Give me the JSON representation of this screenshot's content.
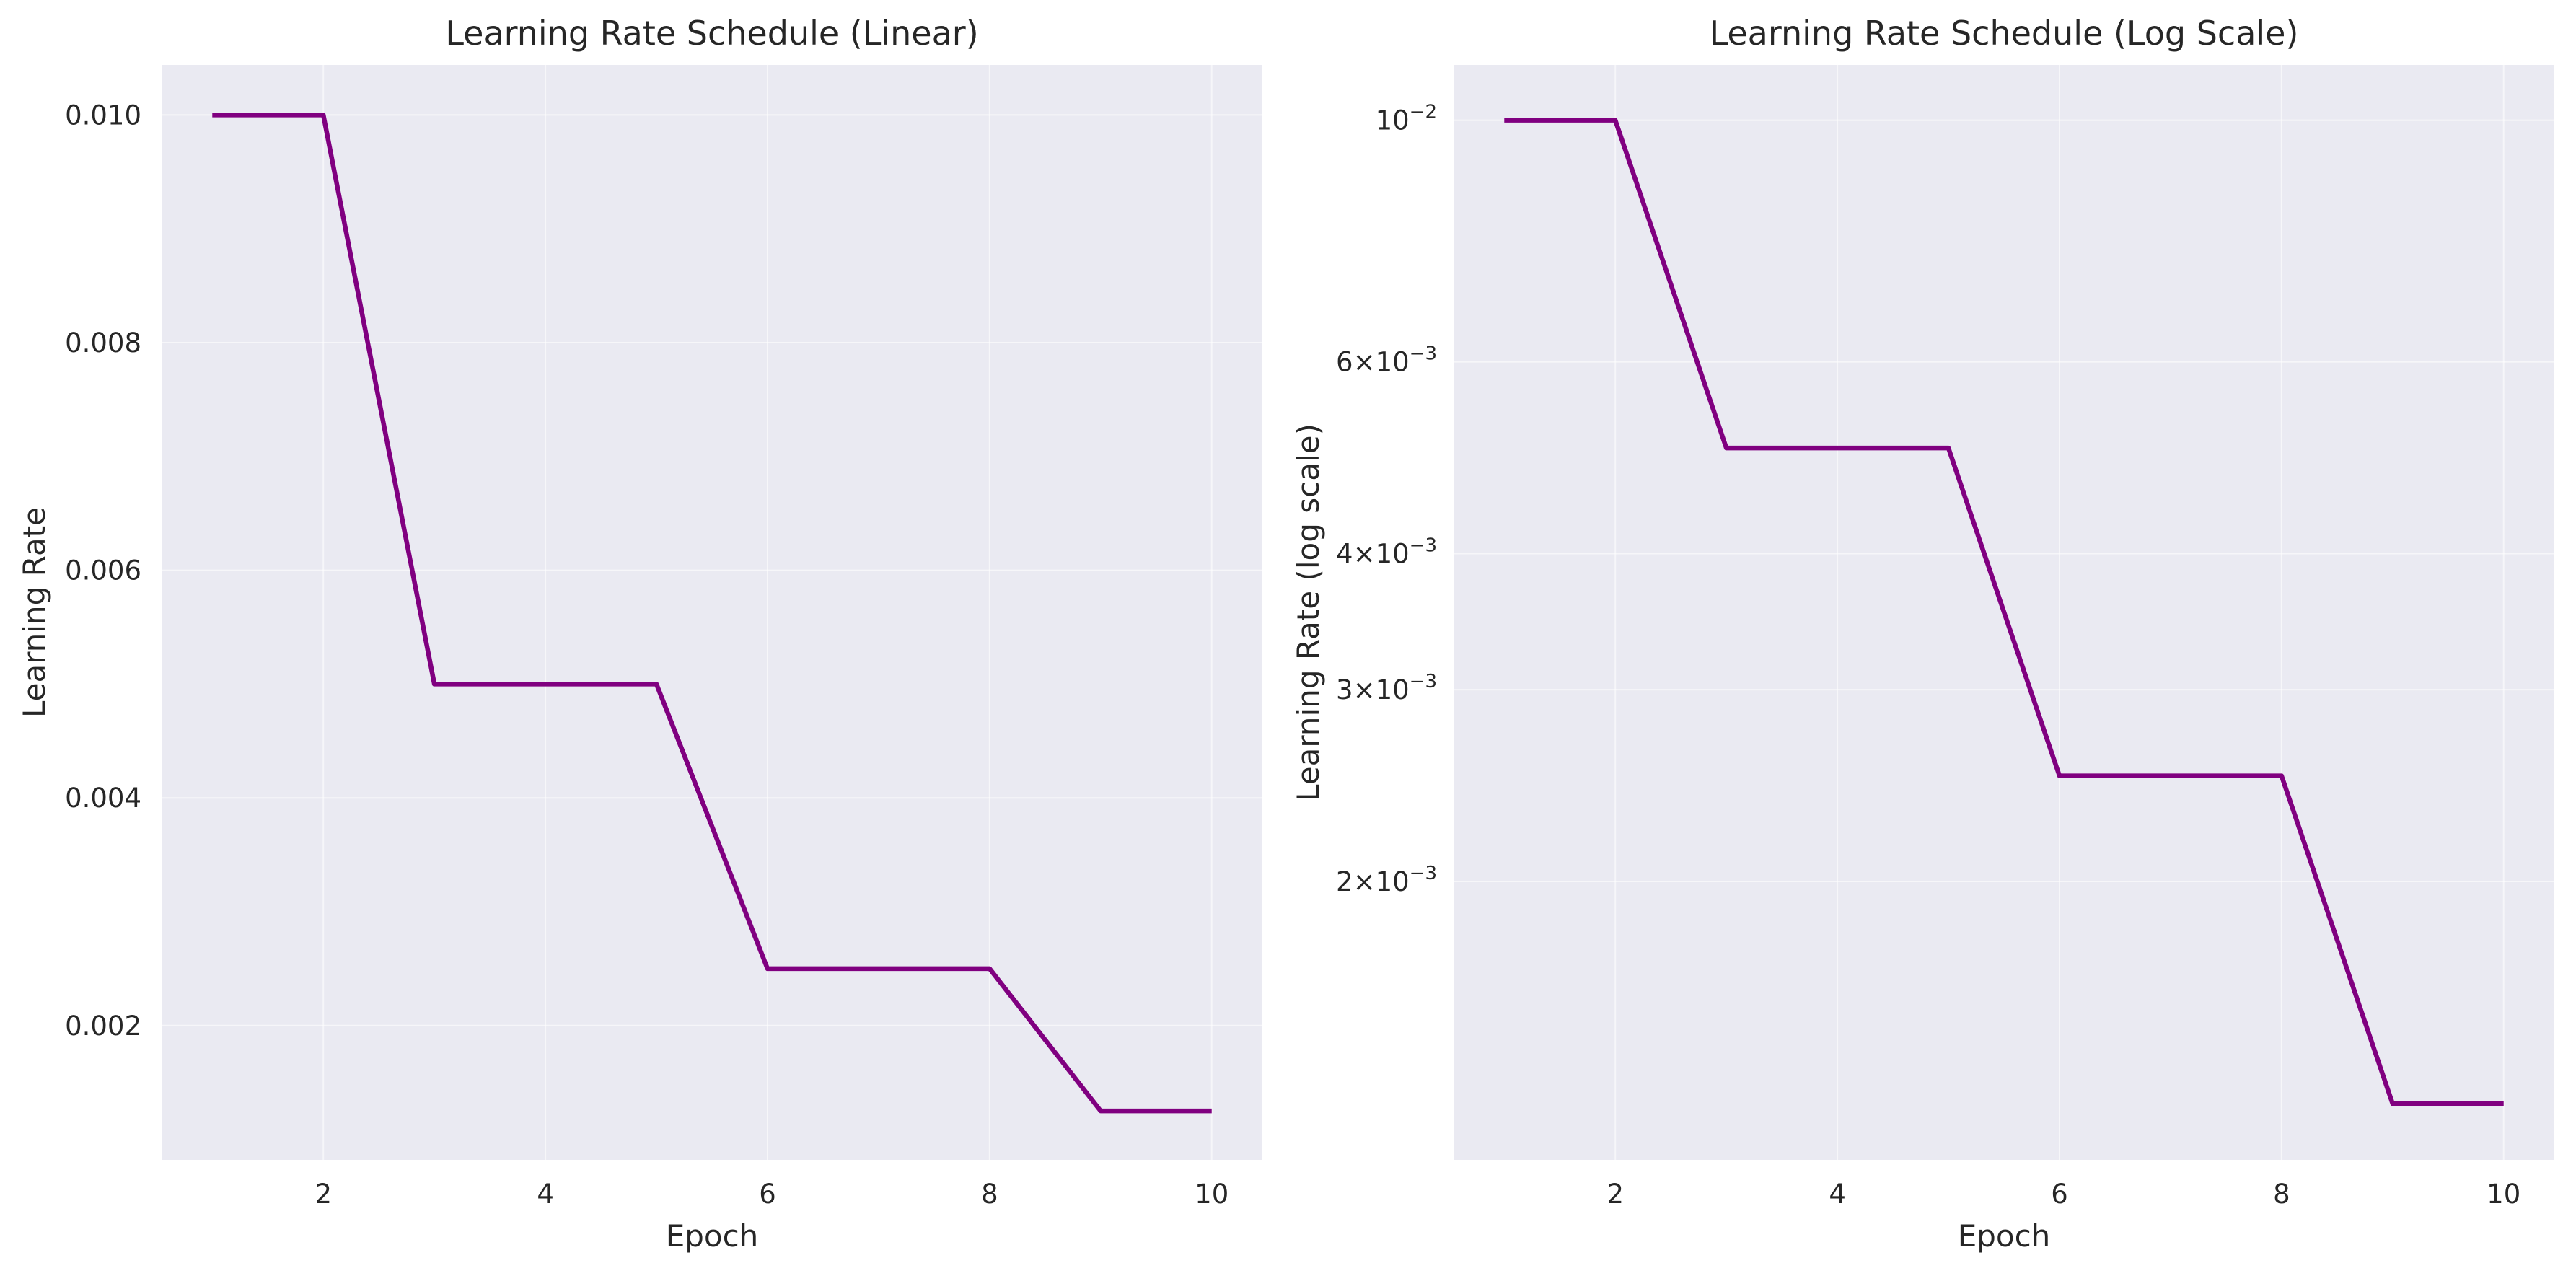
{
  "chart_data": [
    {
      "type": "line",
      "title": "Learning Rate Schedule (Linear)",
      "xlabel": "Epoch",
      "ylabel": "Learning Rate",
      "yscale": "linear",
      "xlim": [
        0.55,
        10.45
      ],
      "ylim": [
        0.00082,
        0.01044
      ],
      "x_ticks": [
        2,
        4,
        6,
        8,
        10
      ],
      "y_ticks": [
        0.002,
        0.004,
        0.006,
        0.008,
        0.01
      ],
      "y_tick_labels": [
        "0.002",
        "0.004",
        "0.006",
        "0.008",
        "0.010"
      ],
      "grid": true,
      "series": [
        {
          "color": "#800080",
          "x": [
            1,
            2,
            3,
            4,
            5,
            6,
            7,
            8,
            9,
            10
          ],
          "y": [
            0.01,
            0.01,
            0.005,
            0.005,
            0.005,
            0.0025,
            0.0025,
            0.0025,
            0.00125,
            0.00125
          ]
        }
      ]
    },
    {
      "type": "line",
      "title": "Learning Rate Schedule (Log Scale)",
      "xlabel": "Epoch",
      "ylabel": "Learning Rate (log scale)",
      "yscale": "log",
      "xlim": [
        0.55,
        10.45
      ],
      "ylim": [
        0.00111,
        0.01124
      ],
      "x_ticks": [
        2,
        4,
        6,
        8,
        10
      ],
      "y_ticks": [
        0.002,
        0.003,
        0.004,
        0.006,
        0.01
      ],
      "y_tick_labels": [
        {
          "mantissa": "2",
          "times": "×",
          "base": "10",
          "exp": "−3"
        },
        {
          "mantissa": "3",
          "times": "×",
          "base": "10",
          "exp": "−3"
        },
        {
          "mantissa": "4",
          "times": "×",
          "base": "10",
          "exp": "−3"
        },
        {
          "mantissa": "6",
          "times": "×",
          "base": "10",
          "exp": "−3"
        },
        {
          "mantissa": "",
          "times": "",
          "base": "10",
          "exp": "−2"
        }
      ],
      "grid": true,
      "series": [
        {
          "color": "#800080",
          "x": [
            1,
            2,
            3,
            4,
            5,
            6,
            7,
            8,
            9,
            10
          ],
          "y": [
            0.01,
            0.01,
            0.005,
            0.005,
            0.005,
            0.0025,
            0.0025,
            0.0025,
            0.00125,
            0.00125
          ]
        }
      ]
    }
  ]
}
